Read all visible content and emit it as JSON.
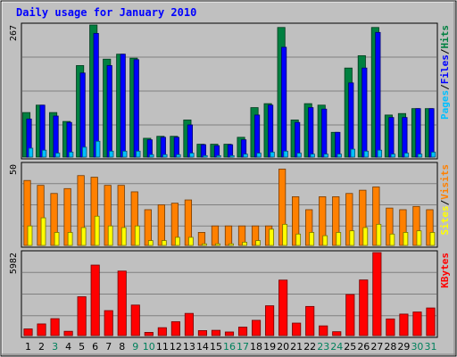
{
  "chart_data": {
    "type": "bar",
    "title": "Daily usage for January 2010",
    "categories": [
      "1",
      "2",
      "3",
      "4",
      "5",
      "6",
      "7",
      "8",
      "9",
      "10",
      "11",
      "12",
      "13",
      "14",
      "15",
      "16",
      "17",
      "18",
      "19",
      "20",
      "21",
      "22",
      "23",
      "24",
      "25",
      "26",
      "27",
      "28",
      "29",
      "30",
      "31"
    ],
    "weekend_days": [
      "3",
      "9",
      "10",
      "16",
      "17",
      "23",
      "24",
      "30",
      "31"
    ],
    "panels": [
      {
        "name": "hits-files-pages",
        "ymax": 267,
        "ymax_label": "267",
        "legend": [
          "Pages",
          "/",
          "Files",
          "/",
          "Hits"
        ],
        "series": [
          {
            "name": "Hits",
            "color": "#008040",
            "values": [
              90,
              105,
              90,
              72,
              185,
              267,
              198,
              208,
              200,
              38,
              42,
              42,
              75,
              26,
              26,
              26,
              40,
              100,
              108,
              262,
              75,
              108,
              105,
              50,
              180,
              205,
              262,
              85,
              88,
              98,
              98
            ]
          },
          {
            "name": "Files",
            "color": "#0000ff",
            "values": [
              77,
              105,
              83,
              70,
              170,
              250,
              185,
              208,
              197,
              35,
              40,
              40,
              65,
              25,
              23,
              25,
              35,
              85,
              105,
              222,
              70,
              100,
              97,
              50,
              150,
              180,
              252,
              80,
              80,
              98,
              98
            ]
          },
          {
            "name": "Pages",
            "color": "#00c0ff",
            "values": [
              18,
              14,
              8,
              10,
              20,
              32,
              12,
              12,
              12,
              5,
              5,
              5,
              8,
              3,
              3,
              3,
              6,
              8,
              10,
              12,
              8,
              6,
              6,
              6,
              16,
              12,
              14,
              6,
              8,
              6,
              10
            ]
          }
        ]
      },
      {
        "name": "visits-sites",
        "ymax": 50,
        "ymax_label": "50",
        "legend": [
          "Sites",
          "/",
          "Visits"
        ],
        "series": [
          {
            "name": "Visits",
            "color": "#ff8000",
            "values": [
              40,
              37,
              32,
              35,
              43,
              42,
              37,
              37,
              33,
              22,
              25,
              26,
              28,
              8,
              12,
              12,
              12,
              12,
              12,
              47,
              30,
              22,
              30,
              30,
              32,
              34,
              36,
              23,
              22,
              24,
              22
            ]
          },
          {
            "name": "Sites",
            "color": "#ffff00",
            "values": [
              12,
              17,
              8,
              8,
              11,
              18,
              12,
              11,
              12,
              3,
              3,
              5,
              5,
              1,
              1,
              1,
              2,
              3,
              10,
              13,
              7,
              8,
              6,
              8,
              9,
              11,
              13,
              7,
              8,
              9,
              8
            ]
          }
        ]
      },
      {
        "name": "kbytes",
        "ymax": 5982,
        "ymax_label": "5982",
        "legend": [
          "KBytes"
        ],
        "series": [
          {
            "name": "KBytes",
            "color": "#ff0000",
            "values": [
              480,
              840,
              1220,
              310,
              2800,
              5080,
              1800,
              4650,
              2200,
              230,
              570,
              1000,
              1600,
              360,
              380,
              260,
              610,
              1100,
              2150,
              4000,
              900,
              2100,
              700,
              280,
              2960,
              4010,
              5982,
              1200,
              1550,
              1700,
              1990
            ]
          }
        ]
      }
    ],
    "colors": {
      "background": "#c0c0c0",
      "gridline": "#808080",
      "title": "#0000ff",
      "weekday_label": "#000000",
      "weekend_label": "#00805c"
    }
  }
}
